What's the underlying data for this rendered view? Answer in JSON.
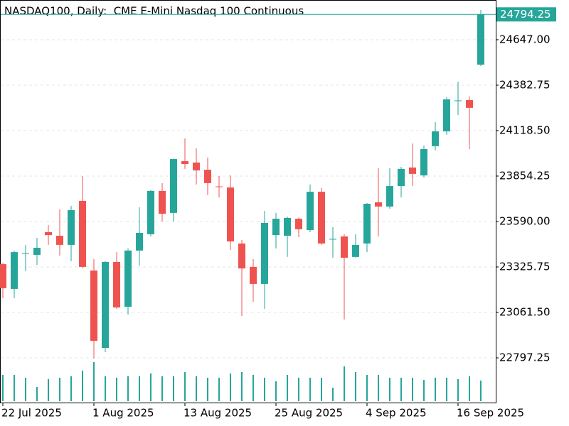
{
  "chart_data": {
    "type": "candlestick",
    "title": "NASDAQ100, Daily:  CME E-Mini Nasdaq 100 Continuous",
    "categories": [
      "22 Jul 2025",
      null,
      null,
      null,
      null,
      null,
      null,
      null,
      "1 Aug 2025",
      null,
      null,
      null,
      null,
      null,
      null,
      null,
      "13 Aug 2025",
      null,
      null,
      null,
      null,
      null,
      null,
      null,
      "25 Aug 2025",
      null,
      null,
      null,
      null,
      null,
      null,
      null,
      "4 Sep 2025",
      null,
      null,
      null,
      null,
      null,
      null,
      null,
      "16 Sep 2025",
      null,
      null
    ],
    "ohlc": [
      [
        23342,
        23350,
        23144,
        23202
      ],
      [
        23198,
        23421,
        23144,
        23412
      ],
      [
        23402,
        23454,
        23301,
        23406
      ],
      [
        23396,
        23495,
        23338,
        23437
      ],
      [
        23528,
        23569,
        23454,
        23511
      ],
      [
        23507,
        23660,
        23392,
        23454
      ],
      [
        23454,
        23681,
        23359,
        23656
      ],
      [
        23710,
        23854,
        23317,
        23326
      ],
      [
        23305,
        23371,
        22793,
        22896
      ],
      [
        22855,
        23359,
        22830,
        23355
      ],
      [
        23355,
        23412,
        23082,
        23090
      ],
      [
        23094,
        23433,
        23049,
        23421
      ],
      [
        23421,
        23673,
        23334,
        23524
      ],
      [
        23516,
        23772,
        23503,
        23768
      ],
      [
        23768,
        23813,
        23590,
        23635
      ],
      [
        23640,
        23956,
        23590,
        23953
      ],
      [
        23941,
        24073,
        23896,
        23924
      ],
      [
        23933,
        24015,
        23805,
        23887
      ],
      [
        23891,
        23962,
        23743,
        23813
      ],
      [
        23794,
        23854,
        23730,
        23790
      ],
      [
        23788,
        23858,
        23425,
        23474
      ],
      [
        23462,
        23483,
        23041,
        23317
      ],
      [
        23326,
        23371,
        23123,
        23227
      ],
      [
        23227,
        23652,
        23082,
        23582
      ],
      [
        23511,
        23640,
        23433,
        23606
      ],
      [
        23507,
        23619,
        23384,
        23611
      ],
      [
        23606,
        23613,
        23499,
        23545
      ],
      [
        23540,
        23805,
        23528,
        23763
      ],
      [
        23763,
        23784,
        23454,
        23462
      ],
      [
        23485,
        23557,
        23379,
        23489
      ],
      [
        23503,
        23516,
        23020,
        23379
      ],
      [
        23384,
        23516,
        23380,
        23454
      ],
      [
        23462,
        23697,
        23412,
        23693
      ],
      [
        23702,
        23900,
        23503,
        23677
      ],
      [
        23677,
        23900,
        23664,
        23796
      ],
      [
        23796,
        23908,
        23730,
        23896
      ],
      [
        23904,
        24044,
        23796,
        23867
      ],
      [
        23858,
        24032,
        23846,
        24011
      ],
      [
        24028,
        24168,
        24003,
        24114
      ],
      [
        24114,
        24313,
        24094,
        24300
      ],
      [
        24290,
        24403,
        24209,
        24294
      ],
      [
        24296,
        24317,
        24011,
        24251
      ],
      [
        24502,
        24820,
        24494,
        24794.25
      ]
    ],
    "volume": [
      37,
      37,
      33,
      20,
      31,
      33,
      35,
      43,
      55,
      35,
      33,
      35,
      35,
      39,
      35,
      35,
      41,
      35,
      33,
      33,
      39,
      41,
      37,
      33,
      28,
      37,
      33,
      33,
      33,
      19,
      49,
      41,
      37,
      37,
      33,
      33,
      33,
      30,
      33,
      33,
      31,
      35,
      29
    ],
    "up_color": "#26a69a",
    "down_color": "#ef5350",
    "volume_color": "#26a69a",
    "ylim": [
      22533,
      24878
    ],
    "yticks": [
      22797.25,
      {
        "value": 23061.5,
        "label": "23061.50"
      },
      23325.75,
      {
        "value": 23590,
        "label": "23590.00"
      },
      23854.25,
      {
        "value": 24118.5,
        "label": "24118.50"
      },
      24382.75,
      {
        "value": 24647,
        "label": "24647.00"
      }
    ],
    "grid": true
  }
}
